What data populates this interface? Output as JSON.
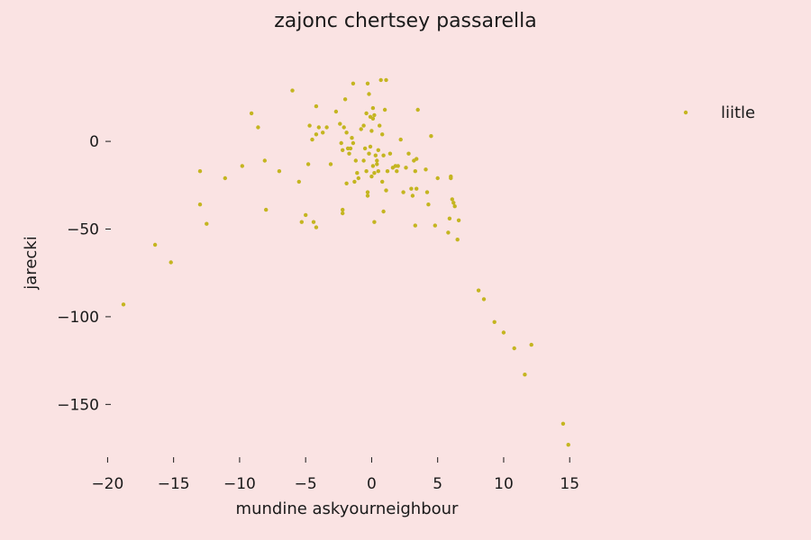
{
  "chart_data": {
    "type": "scatter",
    "title": "zajonc chertsey passarella",
    "xlabel": "mundine askyourneighbour",
    "ylabel": "jarecki",
    "xlim": [
      -20.3,
      15.6
    ],
    "ylim": [
      -176,
      37
    ],
    "xticks": [
      -20,
      -15,
      -10,
      -5,
      0,
      5,
      10,
      15
    ],
    "xtick_labels": [
      "−20",
      "−15",
      "−10",
      "−5",
      "0",
      "5",
      "10",
      "15"
    ],
    "yticks": [
      0,
      -50,
      -100,
      -150
    ],
    "ytick_labels": [
      "0",
      "−50",
      "−100",
      "−150"
    ],
    "grid": false,
    "legend": {
      "position": "top-right",
      "entries": [
        "liitle"
      ]
    },
    "series": [
      {
        "name": "liitle",
        "color": "#c4b520",
        "points": [
          [
            -18.8,
            -93
          ],
          [
            -16.4,
            -59
          ],
          [
            -15.2,
            -69
          ],
          [
            -13.0,
            -17
          ],
          [
            -13.0,
            -36
          ],
          [
            -12.5,
            -47
          ],
          [
            -11.1,
            -21
          ],
          [
            -9.8,
            -14
          ],
          [
            -9.1,
            16
          ],
          [
            -8.6,
            8
          ],
          [
            -8.1,
            -11
          ],
          [
            -8.0,
            -39
          ],
          [
            -7.0,
            -17
          ],
          [
            -6.0,
            29
          ],
          [
            -5.5,
            -23
          ],
          [
            -5.3,
            -46
          ],
          [
            -5.0,
            -42
          ],
          [
            -4.8,
            -13
          ],
          [
            -4.7,
            9
          ],
          [
            -4.5,
            1
          ],
          [
            -4.4,
            -46
          ],
          [
            -4.2,
            20
          ],
          [
            -4.2,
            4
          ],
          [
            -4.2,
            -49
          ],
          [
            -4.0,
            8
          ],
          [
            -3.7,
            5
          ],
          [
            -3.4,
            8
          ],
          [
            -3.1,
            -13
          ],
          [
            -2.7,
            17
          ],
          [
            -2.4,
            10
          ],
          [
            -2.3,
            -1
          ],
          [
            -2.2,
            -39
          ],
          [
            -2.2,
            -41
          ],
          [
            -2.2,
            -5
          ],
          [
            -2.1,
            8
          ],
          [
            -2.0,
            24
          ],
          [
            -1.9,
            -24
          ],
          [
            -1.9,
            5
          ],
          [
            -1.8,
            -4
          ],
          [
            -1.7,
            -7
          ],
          [
            -1.6,
            -4
          ],
          [
            -1.5,
            2
          ],
          [
            -1.4,
            -1
          ],
          [
            -1.4,
            33
          ],
          [
            -1.3,
            -23
          ],
          [
            -1.2,
            -11
          ],
          [
            -1.1,
            -18
          ],
          [
            -1.0,
            -21
          ],
          [
            -0.8,
            7
          ],
          [
            -0.6,
            -11
          ],
          [
            -0.6,
            9
          ],
          [
            -0.5,
            -4
          ],
          [
            -0.4,
            -17
          ],
          [
            -0.4,
            16
          ],
          [
            -0.3,
            -29
          ],
          [
            -0.3,
            -31
          ],
          [
            -0.3,
            33
          ],
          [
            -0.2,
            -7
          ],
          [
            -0.2,
            27
          ],
          [
            -0.1,
            -3
          ],
          [
            -0.1,
            14
          ],
          [
            0.0,
            -20
          ],
          [
            0.0,
            6
          ],
          [
            0.1,
            -14
          ],
          [
            0.1,
            19
          ],
          [
            0.1,
            13
          ],
          [
            0.2,
            -46
          ],
          [
            0.2,
            -18
          ],
          [
            0.2,
            15
          ],
          [
            0.3,
            -8
          ],
          [
            0.4,
            -11
          ],
          [
            0.4,
            -13
          ],
          [
            0.5,
            -5
          ],
          [
            0.5,
            -17
          ],
          [
            0.6,
            9
          ],
          [
            0.7,
            35
          ],
          [
            0.8,
            -23
          ],
          [
            0.8,
            4
          ],
          [
            0.9,
            -40
          ],
          [
            0.9,
            -8
          ],
          [
            1.0,
            18
          ],
          [
            1.1,
            35
          ],
          [
            1.1,
            -28
          ],
          [
            1.2,
            -17
          ],
          [
            1.4,
            -7
          ],
          [
            1.6,
            -15
          ],
          [
            1.8,
            -14
          ],
          [
            1.9,
            -17
          ],
          [
            2.0,
            -14
          ],
          [
            2.2,
            1
          ],
          [
            2.4,
            -29
          ],
          [
            2.6,
            -15
          ],
          [
            2.8,
            -7
          ],
          [
            3.0,
            -27
          ],
          [
            3.1,
            -31
          ],
          [
            3.2,
            -11
          ],
          [
            3.3,
            -48
          ],
          [
            3.3,
            -17
          ],
          [
            3.4,
            -10
          ],
          [
            3.4,
            -27
          ],
          [
            3.5,
            18
          ],
          [
            4.1,
            -16
          ],
          [
            4.2,
            -29
          ],
          [
            4.3,
            -36
          ],
          [
            4.5,
            3
          ],
          [
            4.8,
            -48
          ],
          [
            5.0,
            -21
          ],
          [
            5.8,
            -52
          ],
          [
            5.9,
            -44
          ],
          [
            6.0,
            -20
          ],
          [
            6.0,
            -21
          ],
          [
            6.1,
            -33
          ],
          [
            6.2,
            -35
          ],
          [
            6.3,
            -37
          ],
          [
            6.5,
            -56
          ],
          [
            6.6,
            -45
          ],
          [
            8.1,
            -85
          ],
          [
            8.5,
            -90
          ],
          [
            9.3,
            -103
          ],
          [
            10.0,
            -109
          ],
          [
            10.8,
            -118
          ],
          [
            11.6,
            -133
          ],
          [
            12.1,
            -116
          ],
          [
            14.5,
            -161
          ],
          [
            14.9,
            -173
          ]
        ]
      }
    ]
  }
}
